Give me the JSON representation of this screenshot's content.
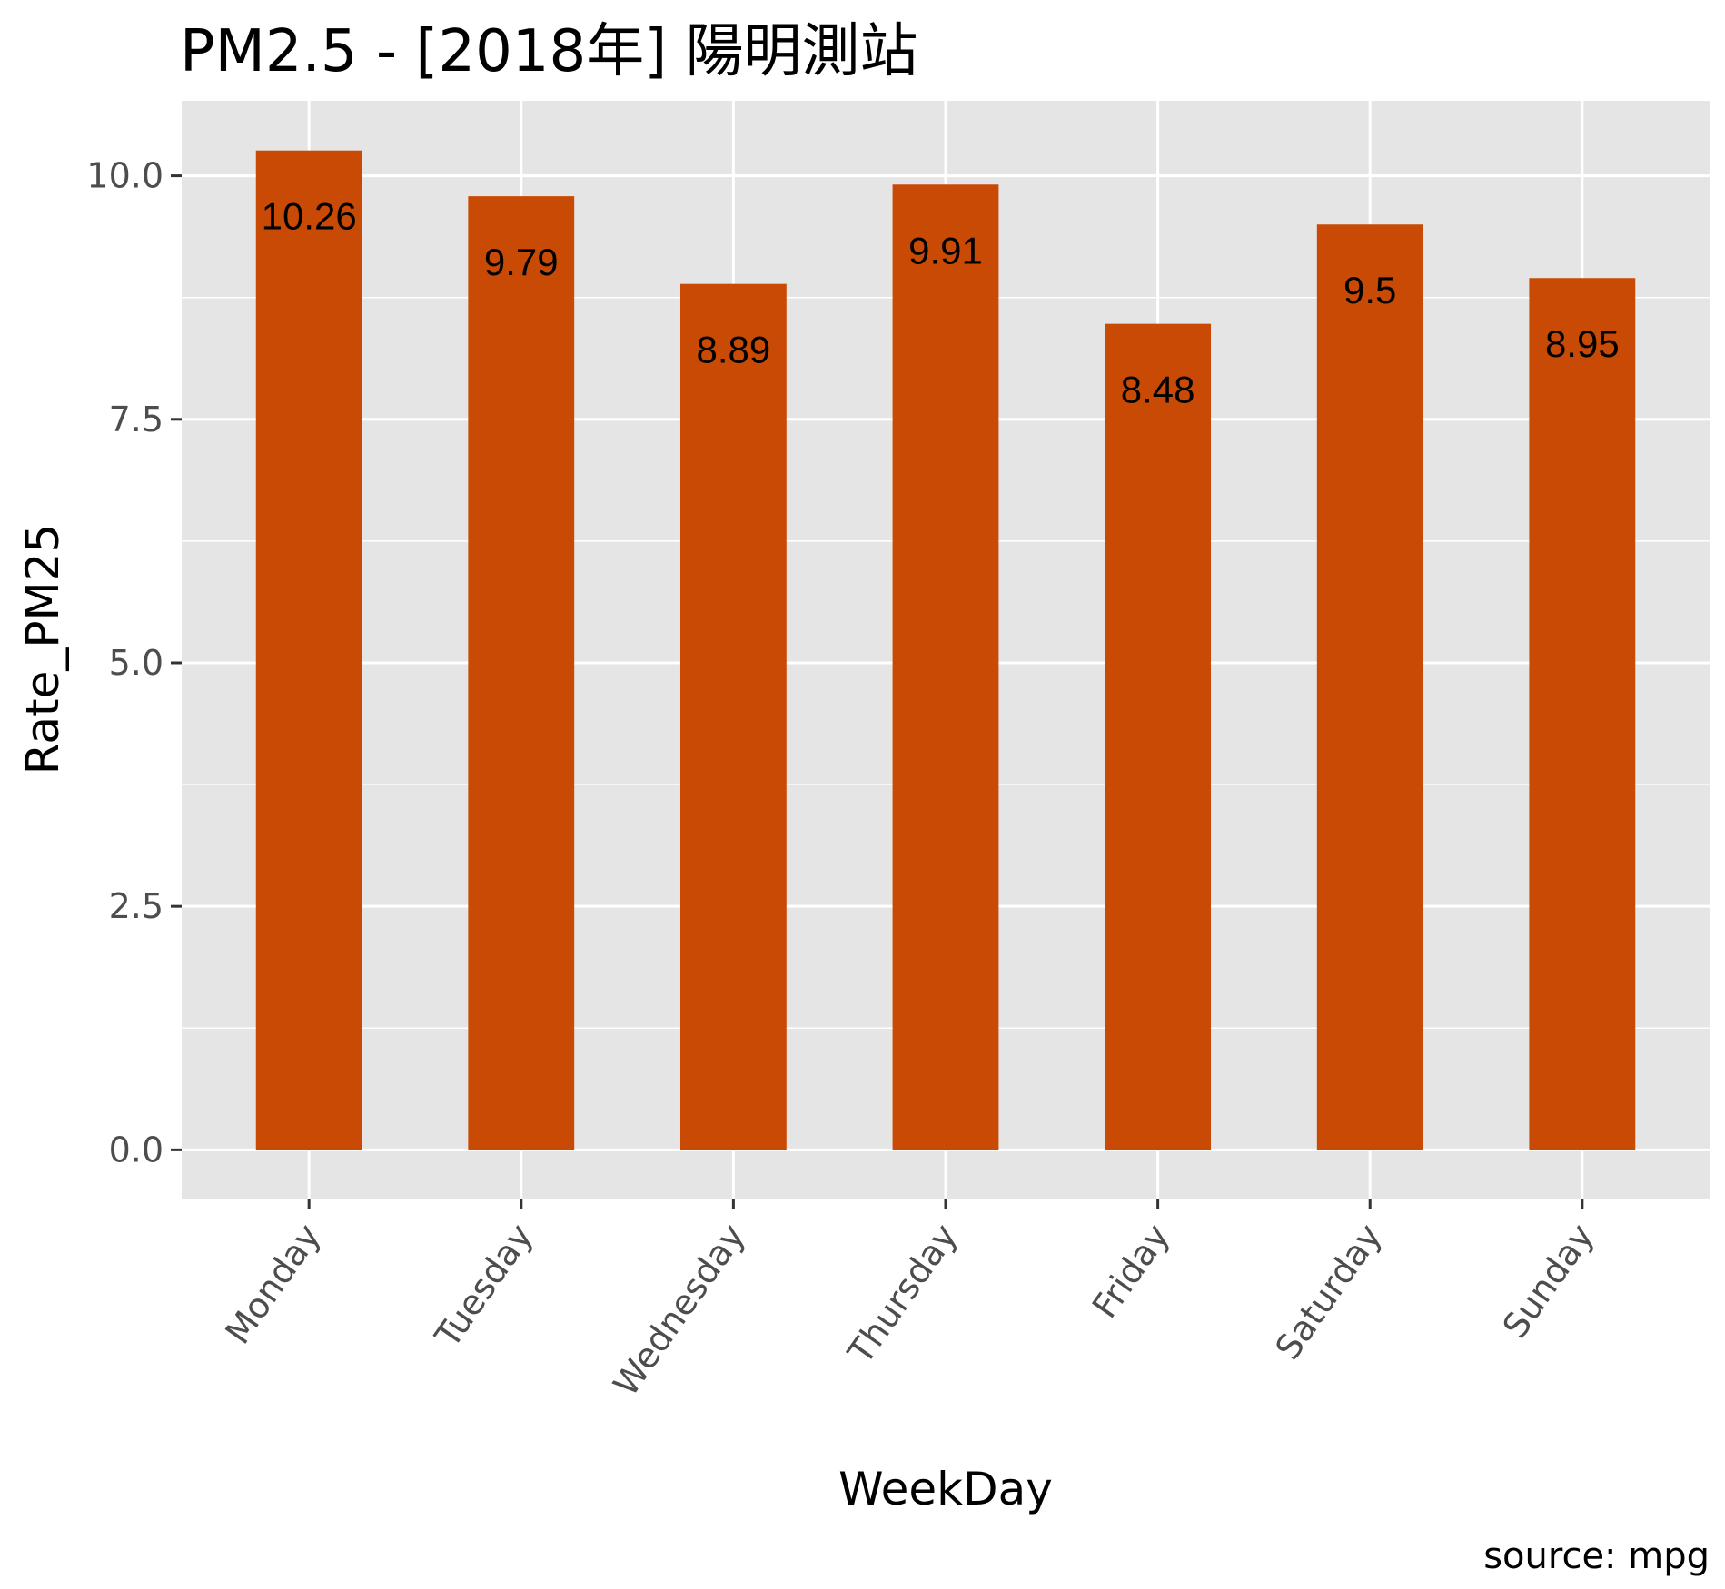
{
  "chart_data": {
    "type": "bar",
    "title": "PM2.5 - [2018年]   陽明測站",
    "xlabel": "WeekDay",
    "ylabel": "Rate_PM25",
    "caption": "source: mpg",
    "categories": [
      "Monday",
      "Tuesday",
      "Wednesday",
      "Thursday",
      "Friday",
      "Saturday",
      "Sunday"
    ],
    "values": [
      10.26,
      9.79,
      8.89,
      9.91,
      8.48,
      9.5,
      8.95
    ],
    "value_labels": [
      "10.26",
      "9.79",
      "8.89",
      "9.91",
      "8.48",
      "9.5",
      "8.95"
    ],
    "y_ticks": [
      0,
      2.5,
      5,
      7.5,
      10
    ],
    "y_tick_labels": [
      "0.0",
      "2.5",
      "5.0",
      "7.5",
      "10.0"
    ],
    "ylim": [
      -0.5,
      10.77
    ],
    "grid": true,
    "legend": "none",
    "colors": {
      "bar": "#C84A04",
      "panel": "#E5E5E5",
      "grid": "#FFFFFF"
    }
  }
}
